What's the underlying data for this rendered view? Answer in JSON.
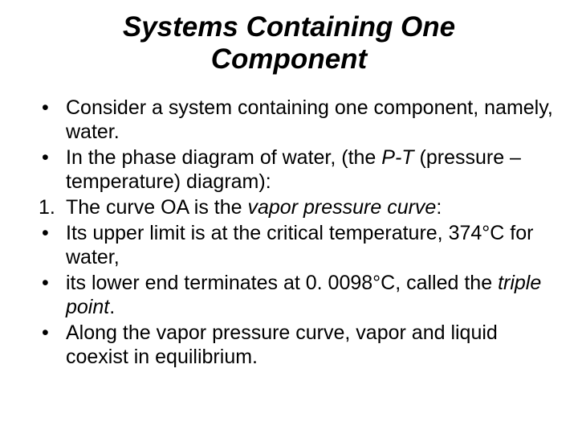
{
  "title_line1": "Systems Containing One",
  "title_line2": "Component",
  "items": [
    {
      "marker": "bullet",
      "html": "Consider a system containing one component, namely, water."
    },
    {
      "marker": "bullet",
      "html": "In the phase diagram of water, (the <span class=\"ital\">P-T</span> (pressure –temperature) diagram):"
    },
    {
      "marker": "1.",
      "html": "The curve OA is the <span class=\"ital\">vapor pressure curve</span>:"
    },
    {
      "marker": "bullet",
      "html": "Its upper limit is at the critical temperature, 374°C for water,"
    },
    {
      "marker": "bullet",
      "html": "its lower end terminates at 0. 0098°C, called the <span class=\"ital\">triple point</span>."
    },
    {
      "marker": "bullet",
      "html": "Along the vapor pressure curve, vapor and liquid coexist in equilibrium."
    }
  ]
}
